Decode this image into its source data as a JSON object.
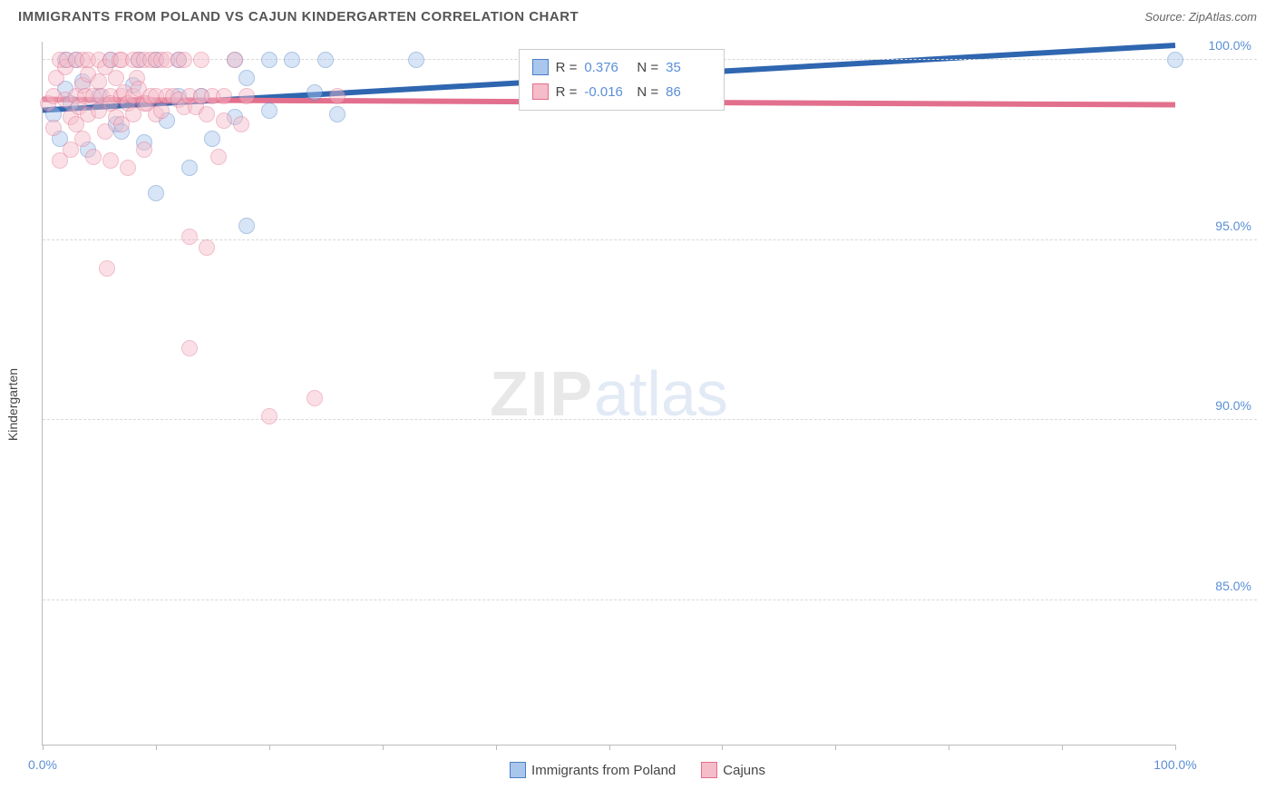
{
  "header": {
    "title": "IMMIGRANTS FROM POLAND VS CAJUN KINDERGARTEN CORRELATION CHART",
    "source": "Source: ZipAtlas.com"
  },
  "watermark": {
    "part1": "ZIP",
    "part2": "atlas"
  },
  "chart": {
    "type": "scatter-with-trend",
    "ylabel": "Kindergarten",
    "x_min": 0.0,
    "x_max": 100.0,
    "y_min": 81.0,
    "y_max": 100.5,
    "x_ticks": [
      0,
      10,
      20,
      30,
      40,
      50,
      60,
      70,
      80,
      90,
      100
    ],
    "x_tick_labels": {
      "0": "0.0%",
      "100": "100.0%"
    },
    "y_ticks": [
      85.0,
      90.0,
      95.0,
      100.0
    ],
    "y_tick_labels": {
      "85": "85.0%",
      "90": "90.0%",
      "95": "95.0%",
      "100": "100.0%"
    },
    "background_color": "#ffffff",
    "grid_color": "#d8d8d8",
    "axis_color": "#bbbbbb",
    "tick_label_color": "#5a8fd6",
    "marker_radius": 9,
    "marker_opacity": 0.45,
    "marker_stroke_width": 1.2,
    "series": [
      {
        "id": "poland",
        "label": "Immigrants from Poland",
        "fill": "#a9c6ec",
        "stroke": "#4a7fc5",
        "trend": {
          "y_at_x0": 98.6,
          "y_at_x100": 100.4,
          "stroke": "#2f66b0",
          "width": 2
        },
        "r_value": "0.376",
        "n_value": "35",
        "points": [
          [
            1,
            98.5
          ],
          [
            1.5,
            97.8
          ],
          [
            2,
            99.2
          ],
          [
            2,
            100.0
          ],
          [
            2.5,
            98.8
          ],
          [
            3,
            100.0
          ],
          [
            3.5,
            99.4
          ],
          [
            4,
            97.5
          ],
          [
            5,
            99.0
          ],
          [
            6,
            100.0
          ],
          [
            6.5,
            98.2
          ],
          [
            7,
            98.0
          ],
          [
            8,
            99.3
          ],
          [
            8.5,
            100.0
          ],
          [
            9,
            97.7
          ],
          [
            10,
            96.3
          ],
          [
            10,
            100.0
          ],
          [
            11,
            98.3
          ],
          [
            12,
            99.0
          ],
          [
            13,
            97.0
          ],
          [
            14,
            99.0
          ],
          [
            15,
            97.8
          ],
          [
            17,
            100.0
          ],
          [
            17,
            98.4
          ],
          [
            18,
            99.5
          ],
          [
            18,
            95.4
          ],
          [
            20,
            100.0
          ],
          [
            20,
            98.6
          ],
          [
            22,
            100.0
          ],
          [
            24,
            99.1
          ],
          [
            25,
            100.0
          ],
          [
            26,
            98.5
          ],
          [
            33,
            100.0
          ],
          [
            100,
            100.0
          ],
          [
            12,
            100.0
          ]
        ]
      },
      {
        "id": "cajuns",
        "label": "Cajuns",
        "fill": "#f5bcc9",
        "stroke": "#e26f8d",
        "trend": {
          "y_at_x0": 98.9,
          "y_at_x100": 98.75,
          "stroke": "#e26f8d",
          "width": 2
        },
        "r_value": "-0.016",
        "n_value": "86",
        "points": [
          [
            0.5,
            98.8
          ],
          [
            1,
            99.0
          ],
          [
            1,
            98.1
          ],
          [
            1.2,
            99.5
          ],
          [
            1.5,
            97.2
          ],
          [
            1.5,
            100.0
          ],
          [
            2,
            98.9
          ],
          [
            2,
            99.8
          ],
          [
            2.2,
            100.0
          ],
          [
            2.5,
            98.4
          ],
          [
            2.5,
            97.5
          ],
          [
            3,
            99.0
          ],
          [
            3,
            98.2
          ],
          [
            3,
            100.0
          ],
          [
            3.2,
            98.7
          ],
          [
            3.5,
            100.0
          ],
          [
            3.5,
            99.3
          ],
          [
            3.5,
            97.8
          ],
          [
            3.8,
            99.0
          ],
          [
            4,
            98.5
          ],
          [
            4,
            99.6
          ],
          [
            4,
            100.0
          ],
          [
            4.5,
            99.0
          ],
          [
            4.5,
            97.3
          ],
          [
            5,
            99.4
          ],
          [
            5,
            100.0
          ],
          [
            5,
            98.6
          ],
          [
            5.2,
            99.0
          ],
          [
            5.5,
            99.8
          ],
          [
            5.5,
            98.0
          ],
          [
            5.7,
            94.2
          ],
          [
            6,
            99.0
          ],
          [
            6,
            100.0
          ],
          [
            6,
            97.2
          ],
          [
            6,
            98.8
          ],
          [
            6.5,
            99.5
          ],
          [
            6.5,
            98.4
          ],
          [
            6.8,
            100.0
          ],
          [
            7,
            99.0
          ],
          [
            7,
            98.2
          ],
          [
            7,
            100.0
          ],
          [
            7.2,
            99.1
          ],
          [
            7.5,
            98.8
          ],
          [
            7.5,
            97.0
          ],
          [
            8,
            99.0
          ],
          [
            8,
            100.0
          ],
          [
            8,
            98.5
          ],
          [
            8.3,
            99.5
          ],
          [
            8.5,
            100.0
          ],
          [
            8.5,
            99.2
          ],
          [
            9,
            98.8
          ],
          [
            9,
            100.0
          ],
          [
            9,
            97.5
          ],
          [
            9.2,
            98.8
          ],
          [
            9.5,
            99.0
          ],
          [
            9.5,
            100.0
          ],
          [
            10,
            98.5
          ],
          [
            10,
            100.0
          ],
          [
            10,
            99.0
          ],
          [
            10.5,
            100.0
          ],
          [
            10.5,
            98.6
          ],
          [
            11,
            99.0
          ],
          [
            11,
            100.0
          ],
          [
            11.5,
            99.0
          ],
          [
            12,
            98.9
          ],
          [
            12,
            100.0
          ],
          [
            12.5,
            98.7
          ],
          [
            12.5,
            100.0
          ],
          [
            13,
            95.1
          ],
          [
            13,
            92.0
          ],
          [
            13,
            99.0
          ],
          [
            13.5,
            98.7
          ],
          [
            14,
            99.0
          ],
          [
            14,
            100.0
          ],
          [
            14.5,
            98.5
          ],
          [
            14.5,
            94.8
          ],
          [
            15,
            99.0
          ],
          [
            15.5,
            97.3
          ],
          [
            16,
            99.0
          ],
          [
            16,
            98.3
          ],
          [
            17,
            100.0
          ],
          [
            17.5,
            98.2
          ],
          [
            18,
            99.0
          ],
          [
            20,
            90.1
          ],
          [
            24,
            90.6
          ],
          [
            26,
            99.0
          ]
        ]
      }
    ],
    "legend_box": {
      "left_pct": 42.0,
      "top_pct": 1.0,
      "rows": [
        {
          "swatch_fill": "#a9c6ec",
          "swatch_stroke": "#4a7fc5",
          "r": "0.376",
          "n": "35"
        },
        {
          "swatch_fill": "#f5bcc9",
          "swatch_stroke": "#e26f8d",
          "r": "-0.016",
          "n": "86"
        }
      ]
    }
  },
  "bottom_legend": {
    "items": [
      {
        "swatch_fill": "#a9c6ec",
        "swatch_stroke": "#4a7fc5",
        "label": "Immigrants from Poland"
      },
      {
        "swatch_fill": "#f5bcc9",
        "swatch_stroke": "#e26f8d",
        "label": "Cajuns"
      }
    ]
  }
}
